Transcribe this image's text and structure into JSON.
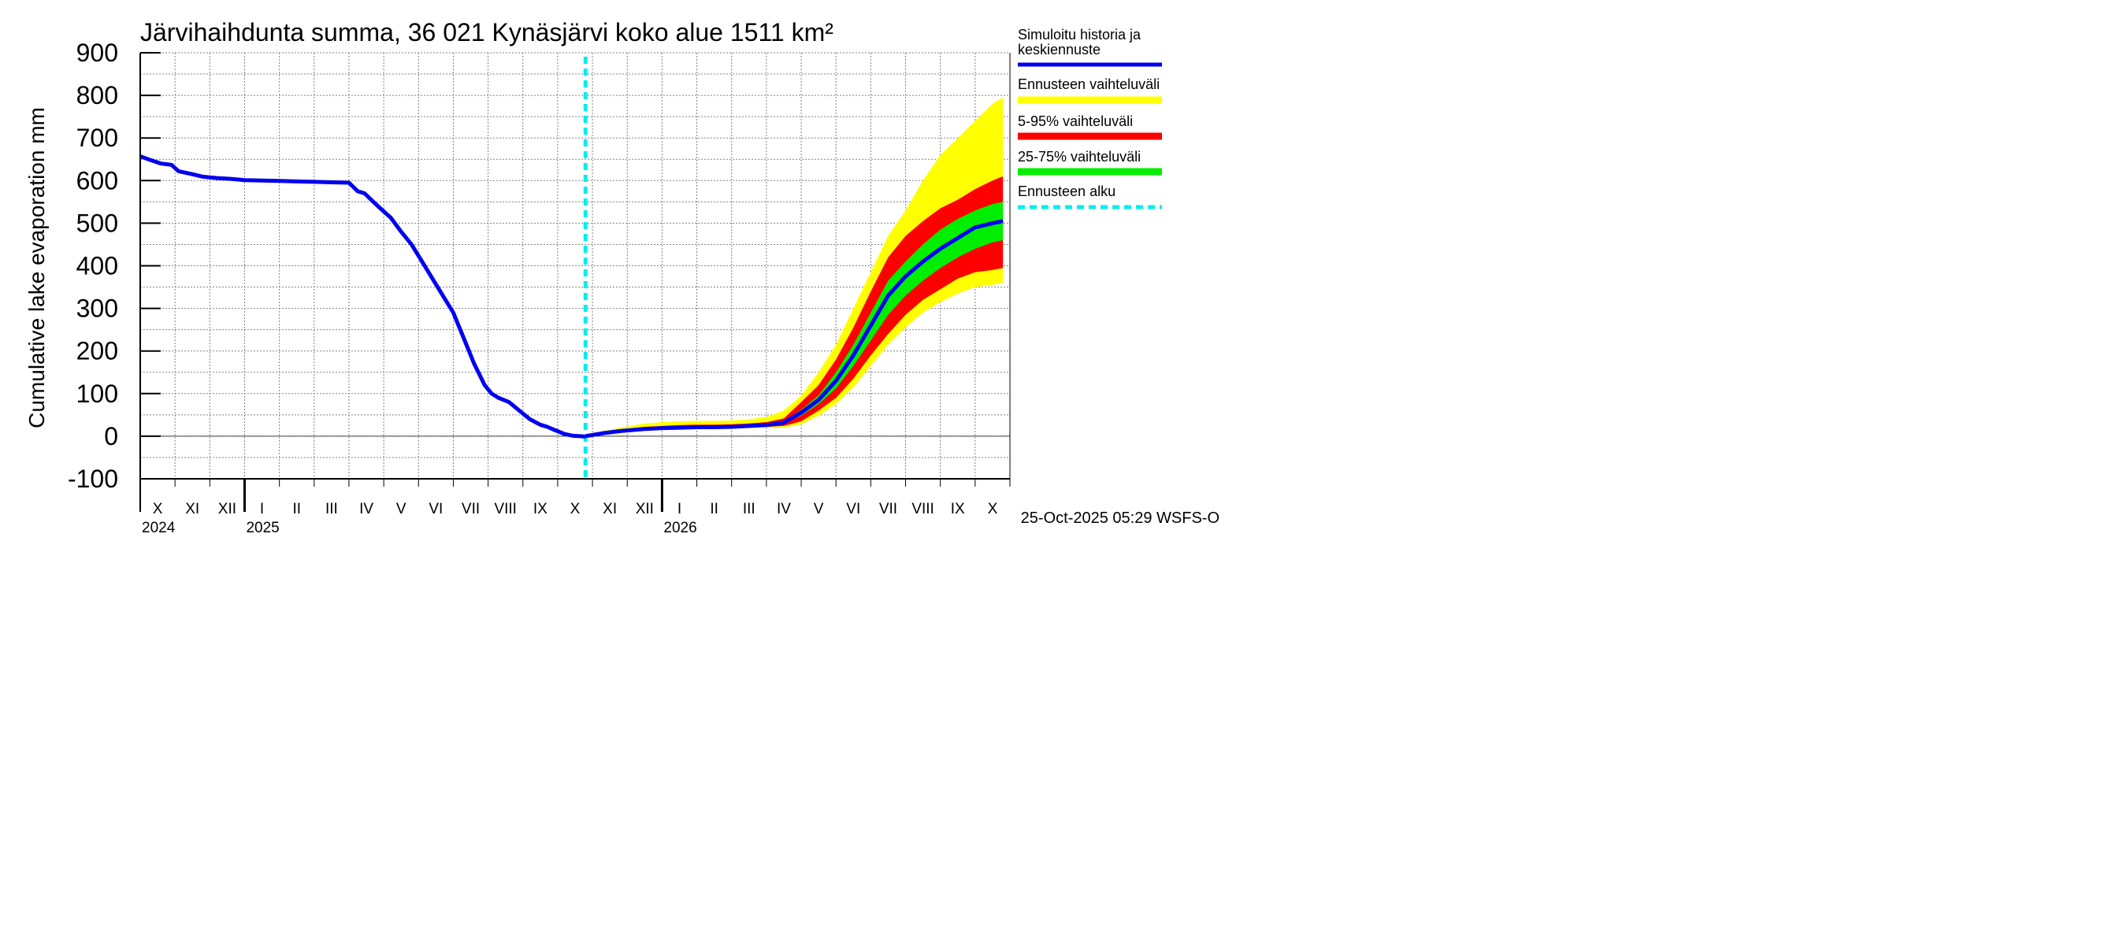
{
  "chart_data": {
    "type": "area",
    "title": "Järvihaihdunta summa, 36 021 Kynäsjärvi koko alue 1511 km²",
    "ylabel": "Cumulative lake evaporation   mm",
    "xlabel": "",
    "ylim": [
      -100,
      900
    ],
    "y_ticks": [
      900,
      800,
      700,
      600,
      500,
      400,
      300,
      200,
      100,
      0,
      -100
    ],
    "grid": true,
    "months": [
      "X",
      "XI",
      "XII",
      "I",
      "II",
      "III",
      "IV",
      "V",
      "VI",
      "VII",
      "VIII",
      "IX",
      "X",
      "XI",
      "XII",
      "I",
      "II",
      "III",
      "IV",
      "V",
      "VI",
      "VII",
      "VIII",
      "IX",
      "X"
    ],
    "years": [
      {
        "label": "2024",
        "month_index": 0
      },
      {
        "label": "2025",
        "month_index": 3
      },
      {
        "label": "2026",
        "month_index": 15
      }
    ],
    "forecast_start_month": 12.8,
    "history": {
      "name": "Simuloitu historia ja keskiennuste",
      "color": "#0000ee",
      "x": [
        0,
        0.3,
        0.6,
        0.9,
        1.1,
        1.5,
        1.8,
        2.2,
        2.6,
        3.0,
        3.5,
        4.0,
        4.5,
        5.0,
        5.5,
        6.0,
        6.25,
        6.45,
        6.7,
        6.9,
        7.2,
        7.5,
        7.8,
        8.1,
        8.4,
        8.7,
        9.0,
        9.3,
        9.6,
        9.9,
        10.1,
        10.3,
        10.6,
        10.9,
        11.2,
        11.5,
        11.7,
        11.9,
        12.2,
        12.45,
        12.65,
        12.8
      ],
      "y": [
        657,
        648,
        640,
        637,
        622,
        615,
        609,
        606,
        604,
        601,
        600,
        599,
        598,
        597,
        596,
        595,
        575,
        570,
        550,
        535,
        513,
        480,
        450,
        410,
        370,
        330,
        290,
        230,
        170,
        120,
        100,
        90,
        80,
        60,
        40,
        27,
        22,
        15,
        5,
        1,
        0,
        -1
      ]
    },
    "forecast": {
      "x": [
        12.8,
        13.3,
        13.8,
        14.5,
        15.0,
        15.5,
        16.0,
        16.5,
        17.0,
        17.5,
        18.0,
        18.5,
        19.0,
        19.5,
        20.0,
        20.5,
        21.0,
        21.5,
        22.0,
        22.5,
        23.0,
        23.5,
        24.0,
        24.5,
        24.8
      ],
      "median": {
        "name": "Simuloitu historia ja keskiennuste",
        "color": "#0000ee",
        "values": [
          0,
          7,
          12,
          17,
          19,
          20,
          21,
          21,
          22,
          24,
          26,
          32,
          55,
          85,
          130,
          190,
          260,
          330,
          375,
          410,
          440,
          465,
          490,
          500,
          505
        ]
      },
      "p25": [
        0,
        6,
        11,
        16,
        18,
        19,
        20,
        20,
        21,
        23,
        25,
        29,
        48,
        75,
        112,
        165,
        225,
        285,
        330,
        365,
        395,
        420,
        440,
        455,
        460
      ],
      "p75": [
        0,
        8,
        13,
        18,
        20,
        21,
        22,
        22,
        23,
        25,
        28,
        36,
        62,
        96,
        150,
        215,
        290,
        365,
        410,
        450,
        485,
        510,
        530,
        545,
        550
      ],
      "p5": [
        0,
        5,
        10,
        14,
        16,
        17,
        18,
        18,
        19,
        21,
        22,
        24,
        35,
        60,
        90,
        135,
        190,
        240,
        285,
        320,
        345,
        370,
        385,
        390,
        395
      ],
      "p95": [
        0,
        10,
        16,
        22,
        24,
        26,
        27,
        27,
        28,
        30,
        33,
        42,
        80,
        120,
        180,
        255,
        340,
        420,
        470,
        505,
        535,
        555,
        580,
        600,
        610
      ],
      "min": [
        0,
        4,
        9,
        13,
        15,
        16,
        17,
        17,
        18,
        19,
        20,
        20,
        28,
        48,
        75,
        115,
        165,
        215,
        255,
        290,
        315,
        335,
        350,
        355,
        360
      ],
      "max": [
        0,
        12,
        20,
        30,
        33,
        35,
        36,
        36,
        37,
        40,
        45,
        60,
        95,
        150,
        215,
        300,
        385,
        470,
        530,
        600,
        660,
        700,
        740,
        780,
        795
      ]
    },
    "legend": {
      "position": "right",
      "items": [
        {
          "label": "Simuloitu historia ja keskiennuste",
          "color": "#0000ee",
          "style": "line"
        },
        {
          "label": "Ennusteen vaihteluväli",
          "color": "#ffff00",
          "style": "band"
        },
        {
          "label": "5-95% vaihteluväli",
          "color": "#ff0000",
          "style": "band"
        },
        {
          "label": "25-75% vaihteluväli",
          "color": "#00ee00",
          "style": "band"
        },
        {
          "label": "Ennusteen alku",
          "color": "#00eeee",
          "style": "dashed"
        }
      ]
    },
    "footer": "25-Oct-2025 05:29 WSFS-O"
  }
}
